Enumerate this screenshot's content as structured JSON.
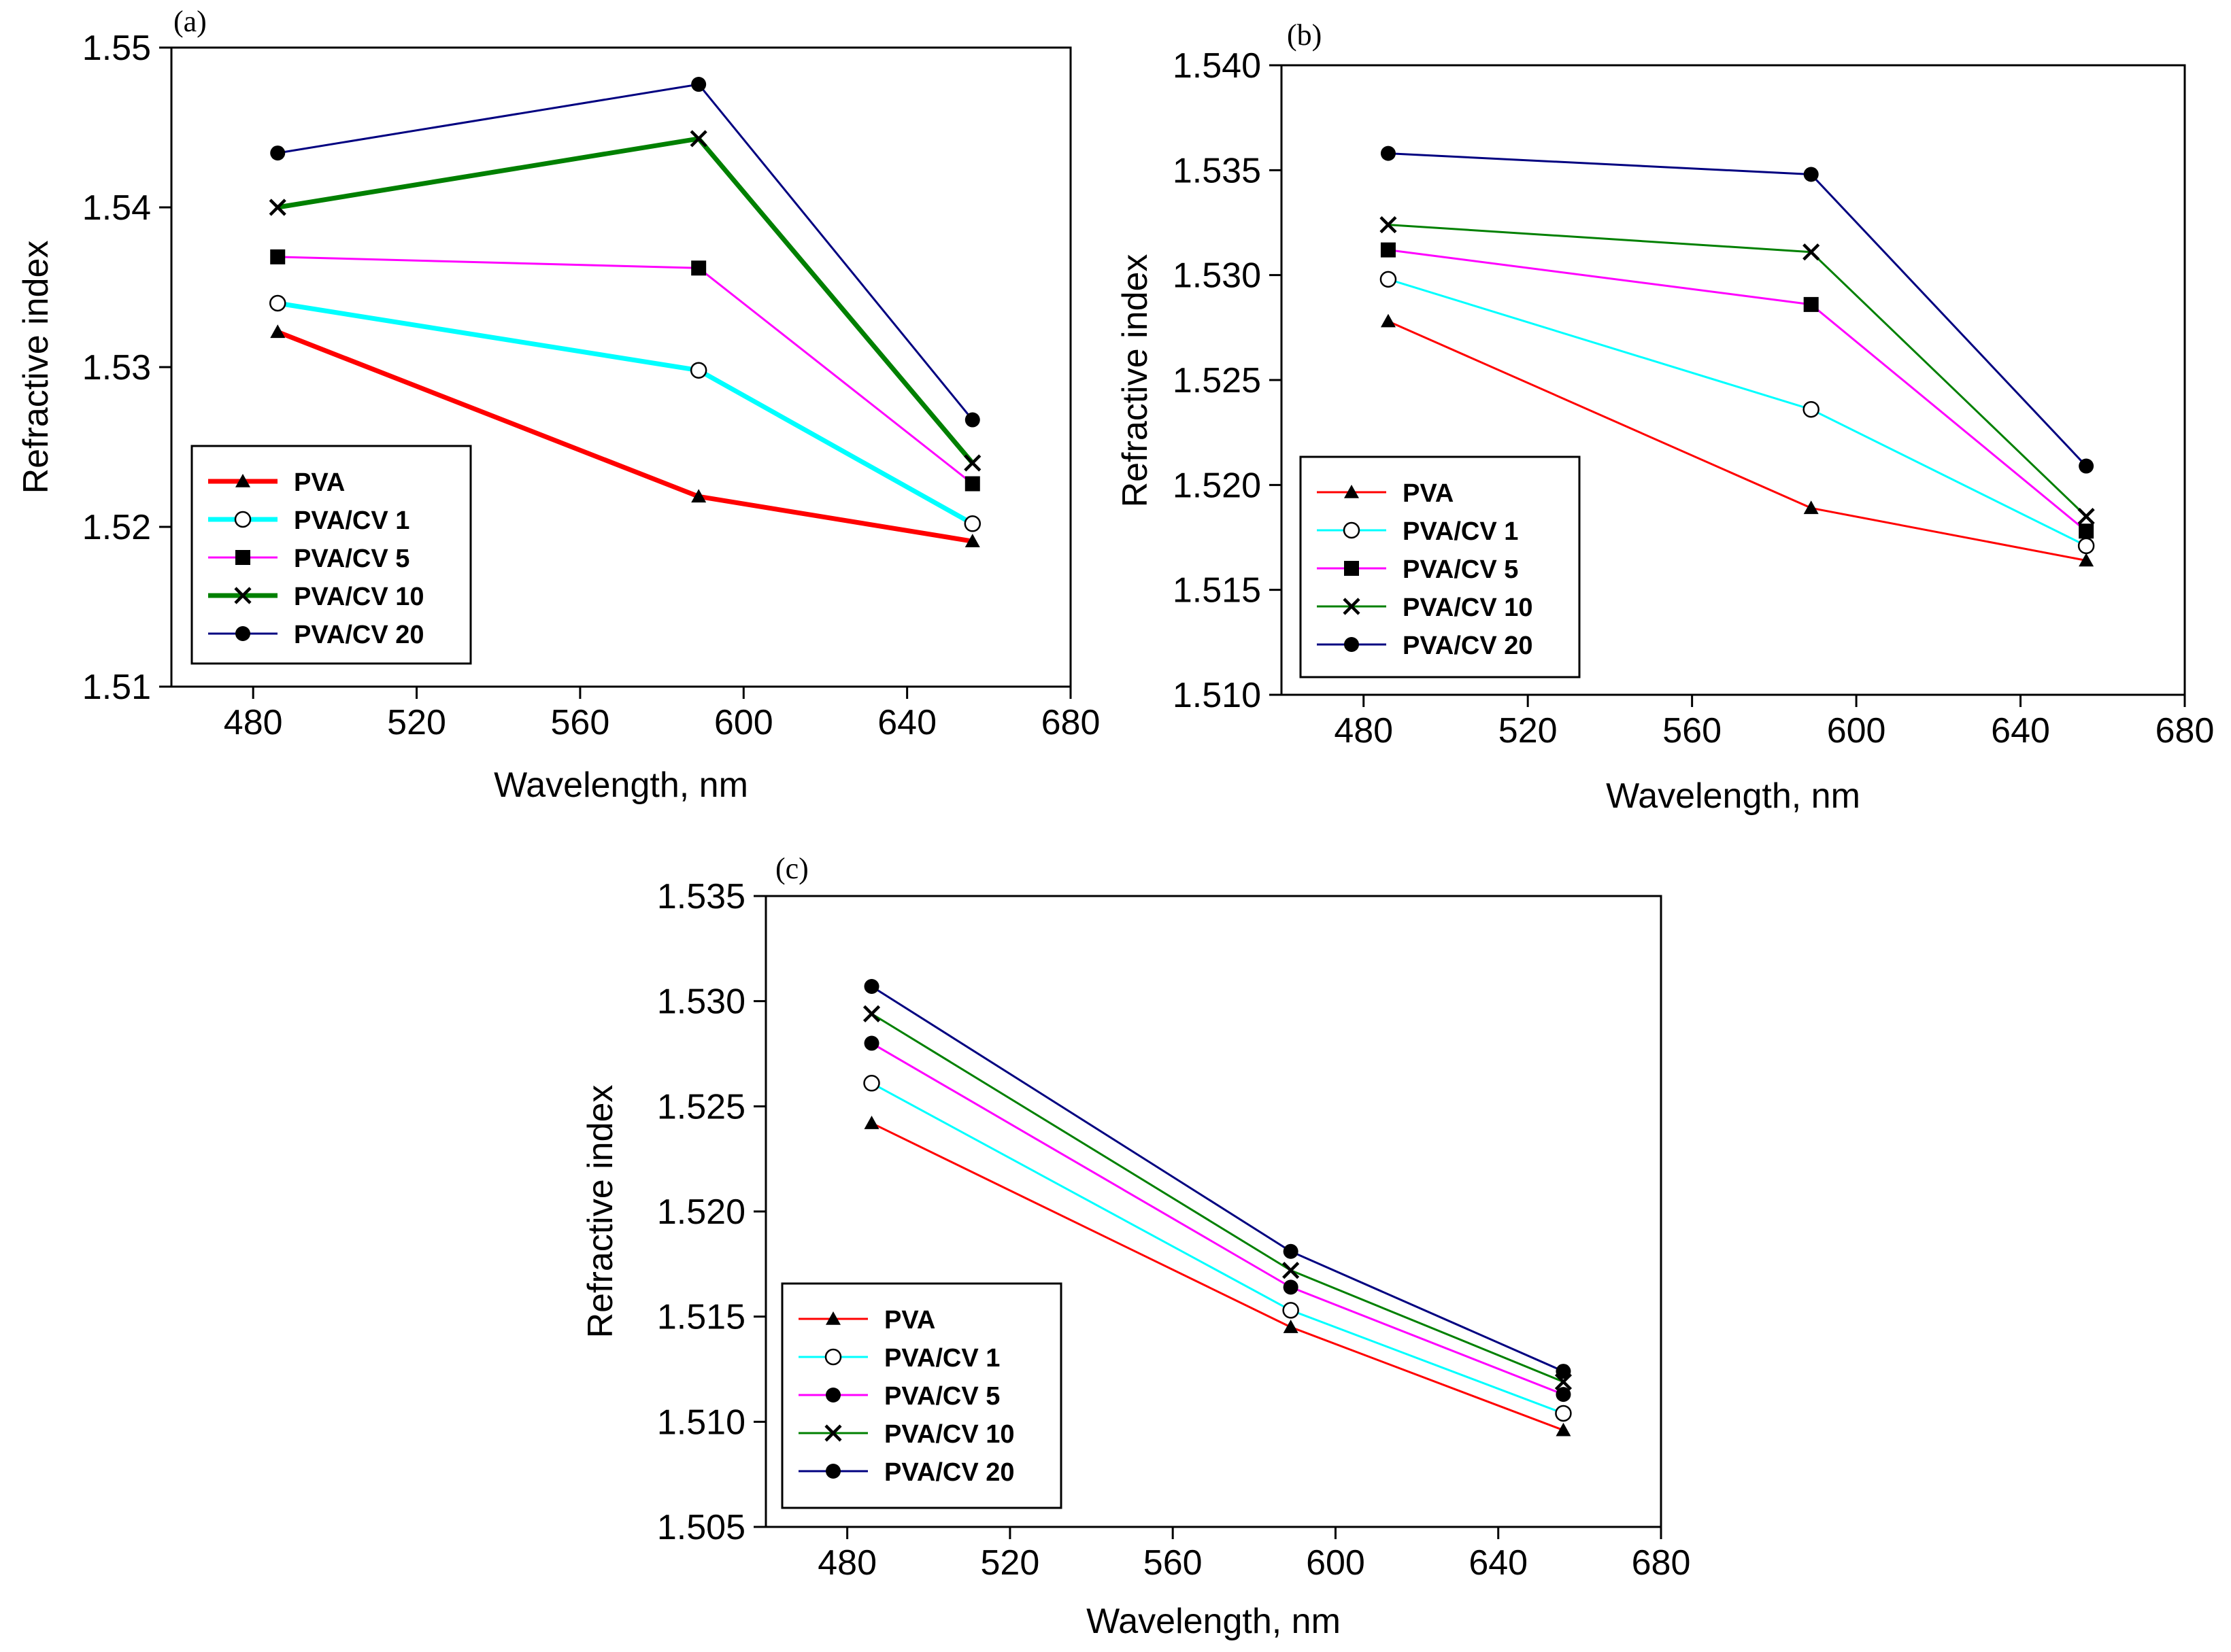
{
  "chart_data": [
    {
      "panel": "(a)",
      "type": "line",
      "xlabel": "Wavelength, nm",
      "ylabel": "Refractive index",
      "xlim": [
        460,
        680
      ],
      "ylim": [
        1.51,
        1.55
      ],
      "xticks": [
        480,
        520,
        560,
        600,
        640,
        680
      ],
      "xtick_labels": [
        "480",
        "520",
        "560",
        "600",
        "640",
        "680"
      ],
      "yticks": [
        1.51,
        1.52,
        1.53,
        1.54,
        1.55
      ],
      "ytick_labels": [
        "1.51",
        "1.52",
        "1.53",
        "1.54",
        "1.55"
      ],
      "legend_position": "bottom-left",
      "x": [
        486,
        589,
        656
      ],
      "series": [
        {
          "name": "PVA",
          "values": [
            1.5322,
            1.5219,
            1.5191
          ],
          "color": "#ff0000",
          "marker": "triangle",
          "line": "thick"
        },
        {
          "name": "PVA/CV 1",
          "values": [
            1.534,
            1.5298,
            1.5202
          ],
          "color": "#00ffff",
          "marker": "open-circle",
          "line": "thick"
        },
        {
          "name": "PVA/CV 5",
          "values": [
            1.5369,
            1.5362,
            1.5227
          ],
          "color": "#ff00ff",
          "marker": "square",
          "line": "thin"
        },
        {
          "name": "PVA/CV 10",
          "values": [
            1.54,
            1.5443,
            1.524
          ],
          "color": "#008000",
          "marker": "x",
          "line": "thick"
        },
        {
          "name": "PVA/CV 20",
          "values": [
            1.5434,
            1.5477,
            1.5267
          ],
          "color": "#000080",
          "marker": "circle",
          "line": "thin"
        }
      ]
    },
    {
      "panel": "(b)",
      "type": "line",
      "xlabel": "Wavelength, nm",
      "ylabel": "Refractive index",
      "xlim": [
        460,
        680
      ],
      "ylim": [
        1.51,
        1.54
      ],
      "xticks": [
        480,
        520,
        560,
        600,
        640,
        680
      ],
      "xtick_labels": [
        "480",
        "520",
        "560",
        "600",
        "640",
        "680"
      ],
      "yticks": [
        1.51,
        1.515,
        1.52,
        1.525,
        1.53,
        1.535,
        1.54
      ],
      "ytick_labels": [
        "1.510",
        "1.515",
        "1.520",
        "1.525",
        "1.530",
        "1.535",
        "1.540"
      ],
      "legend_position": "bottom-left",
      "x": [
        486,
        589,
        656
      ],
      "series": [
        {
          "name": "PVA",
          "values": [
            1.5278,
            1.5189,
            1.5164
          ],
          "color": "#ff0000",
          "marker": "triangle",
          "line": "thin"
        },
        {
          "name": "PVA/CV 1",
          "values": [
            1.5298,
            1.5236,
            1.5171
          ],
          "color": "#00ffff",
          "marker": "open-circle",
          "line": "thin"
        },
        {
          "name": "PVA/CV 5",
          "values": [
            1.5312,
            1.5286,
            1.5178
          ],
          "color": "#ff00ff",
          "marker": "square",
          "line": "thin"
        },
        {
          "name": "PVA/CV 10",
          "values": [
            1.5324,
            1.5311,
            1.5185
          ],
          "color": "#008000",
          "marker": "x",
          "line": "thin"
        },
        {
          "name": "PVA/CV 20",
          "values": [
            1.5358,
            1.5348,
            1.5209
          ],
          "color": "#000080",
          "marker": "circle",
          "line": "thin"
        }
      ]
    },
    {
      "panel": "(c)",
      "type": "line",
      "xlabel": "Wavelength, nm",
      "ylabel": "Refractive index",
      "xlim": [
        460,
        680
      ],
      "ylim": [
        1.505,
        1.535
      ],
      "xticks": [
        480,
        520,
        560,
        600,
        640,
        680
      ],
      "xtick_labels": [
        "480",
        "520",
        "560",
        "600",
        "640",
        "680"
      ],
      "yticks": [
        1.505,
        1.51,
        1.515,
        1.52,
        1.525,
        1.53,
        1.535
      ],
      "ytick_labels": [
        "1.505",
        "1.510",
        "1.515",
        "1.520",
        "1.525",
        "1.530",
        "1.535"
      ],
      "legend_position": "bottom-left",
      "x": [
        486,
        589,
        656
      ],
      "series": [
        {
          "name": "PVA",
          "values": [
            1.5242,
            1.5145,
            1.5096
          ],
          "color": "#ff0000",
          "marker": "triangle",
          "line": "thin"
        },
        {
          "name": "PVA/CV 1",
          "values": [
            1.5261,
            1.5153,
            1.5104
          ],
          "color": "#00ffff",
          "marker": "open-circle",
          "line": "thin"
        },
        {
          "name": "PVA/CV 5",
          "values": [
            1.528,
            1.5164,
            1.5113
          ],
          "color": "#ff00ff",
          "marker": "circle",
          "line": "thin"
        },
        {
          "name": "PVA/CV 10",
          "values": [
            1.5294,
            1.5172,
            1.5119
          ],
          "color": "#008000",
          "marker": "x",
          "line": "thin"
        },
        {
          "name": "PVA/CV 20",
          "values": [
            1.5307,
            1.5181,
            1.5124
          ],
          "color": "#000080",
          "marker": "circle",
          "line": "thin"
        }
      ]
    }
  ]
}
